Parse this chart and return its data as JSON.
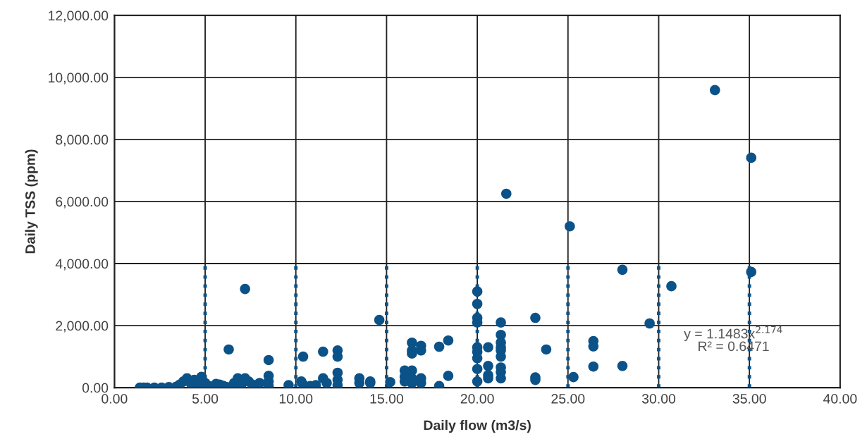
{
  "chart_data": {
    "type": "scatter",
    "xlabel": "Daily flow (m3/s)",
    "ylabel": "Daily TSS (ppm)",
    "xlim": [
      0,
      40
    ],
    "ylim": [
      0,
      12000
    ],
    "xticks": [
      {
        "value": 0,
        "label": "0.00"
      },
      {
        "value": 5,
        "label": "5.00"
      },
      {
        "value": 10,
        "label": "10.00"
      },
      {
        "value": 15,
        "label": "15.00"
      },
      {
        "value": 20,
        "label": "20.00"
      },
      {
        "value": 25,
        "label": "25.00"
      },
      {
        "value": 30,
        "label": "30.00"
      },
      {
        "value": 35,
        "label": "35.00"
      },
      {
        "value": 40,
        "label": "40.00"
      }
    ],
    "yticks": [
      {
        "value": 0,
        "label": "0.00"
      },
      {
        "value": 2000,
        "label": "2,000.00"
      },
      {
        "value": 4000,
        "label": "4,000.00"
      },
      {
        "value": 6000,
        "label": "6,000.00"
      },
      {
        "value": 8000,
        "label": "8,000.00"
      },
      {
        "value": 10000,
        "label": "10,000.00"
      },
      {
        "value": 12000,
        "label": "12,000.00"
      }
    ],
    "grid": true,
    "legend": false,
    "marker": "circle",
    "annotations": [
      "y = 1.1483x$^{2.174}$",
      "R² = 0.6471"
    ],
    "series": [
      {
        "color": "#0b5288",
        "x": [
          1.4,
          1.6,
          1.8,
          2.2,
          2.6,
          3.0,
          3.4,
          3.6,
          3.8,
          4.0,
          4.2,
          4.4,
          4.6,
          4.8,
          5.0,
          5.2,
          5.6,
          5.8,
          6.0,
          6.2,
          6.6,
          6.8,
          7.0,
          7.2,
          7.4,
          7.6,
          8.0,
          9.6,
          7.2,
          6.3,
          8.5,
          8.5,
          8.5,
          8.5,
          10.3,
          10.4,
          10.4,
          10.8,
          11.1,
          11.5,
          11.5,
          11.7,
          12.3,
          12.3,
          12.3,
          12.3,
          12.3,
          13.5,
          13.5,
          14.1,
          14.1,
          14.6,
          15.2,
          16.0,
          16.0,
          16.0,
          16.4,
          16.4,
          16.4,
          16.4,
          16.4,
          16.4,
          16.9,
          16.9,
          16.9,
          16.9,
          17.9,
          17.9,
          18.4,
          18.4,
          20.0,
          20.0,
          20.0,
          20.0,
          20.0,
          20.0,
          20.0,
          20.0,
          20.0,
          20.6,
          20.6,
          20.6,
          20.6,
          21.3,
          21.3,
          21.3,
          21.3,
          21.3,
          21.3,
          21.3,
          21.3,
          21.3,
          21.6,
          23.2,
          23.2,
          23.2,
          23.8,
          25.1,
          25.3,
          26.4,
          26.4,
          26.4,
          28.0,
          28.0,
          29.5,
          30.7,
          33.1,
          35.1,
          35.1
        ],
        "values": [
          0,
          0,
          0,
          0,
          0,
          20,
          30,
          100,
          200,
          300,
          150,
          250,
          100,
          350,
          150,
          50,
          120,
          100,
          60,
          20,
          150,
          300,
          100,
          300,
          200,
          100,
          150,
          80,
          3180,
          1230,
          890,
          380,
          200,
          50,
          200,
          1000,
          100,
          50,
          80,
          1160,
          300,
          150,
          1200,
          1000,
          480,
          250,
          80,
          300,
          150,
          200,
          150,
          2180,
          180,
          550,
          350,
          200,
          1450,
          1200,
          1100,
          550,
          300,
          150,
          1350,
          1200,
          300,
          150,
          1320,
          50,
          1520,
          380,
          3100,
          2700,
          2250,
          2100,
          1300,
          1150,
          950,
          600,
          200,
          1300,
          700,
          400,
          300,
          2100,
          1700,
          1450,
          1300,
          1200,
          1000,
          650,
          500,
          300,
          6250,
          2250,
          330,
          250,
          1230,
          5200,
          340,
          1500,
          1330,
          680,
          3800,
          700,
          2070,
          3270,
          9590,
          7410,
          3730
        ]
      },
      {
        "type": "line",
        "color": "#0b5288",
        "line_style": "dotted",
        "marker": "none",
        "x": [
          5,
          5
        ],
        "values": [
          0,
          4000
        ]
      },
      {
        "type": "line",
        "color": "#0b5288",
        "line_style": "dotted",
        "marker": "none",
        "x": [
          10,
          10
        ],
        "values": [
          0,
          4000
        ]
      },
      {
        "type": "line",
        "color": "#0b5288",
        "line_style": "dotted",
        "marker": "none",
        "x": [
          15,
          15
        ],
        "values": [
          0,
          4000
        ]
      },
      {
        "type": "line",
        "color": "#0b5288",
        "line_style": "dotted",
        "marker": "none",
        "x": [
          20,
          20
        ],
        "values": [
          0,
          4000
        ]
      },
      {
        "type": "line",
        "color": "#0b5288",
        "line_style": "dotted",
        "marker": "none",
        "x": [
          25,
          25
        ],
        "values": [
          0,
          4000
        ]
      },
      {
        "type": "line",
        "color": "#0b5288",
        "line_style": "dotted",
        "marker": "none",
        "x": [
          30,
          30
        ],
        "values": [
          0,
          4000
        ]
      },
      {
        "type": "line",
        "color": "#0b5288",
        "line_style": "dotted",
        "marker": "none",
        "x": [
          35,
          35
        ],
        "values": [
          0,
          4000
        ]
      }
    ]
  }
}
